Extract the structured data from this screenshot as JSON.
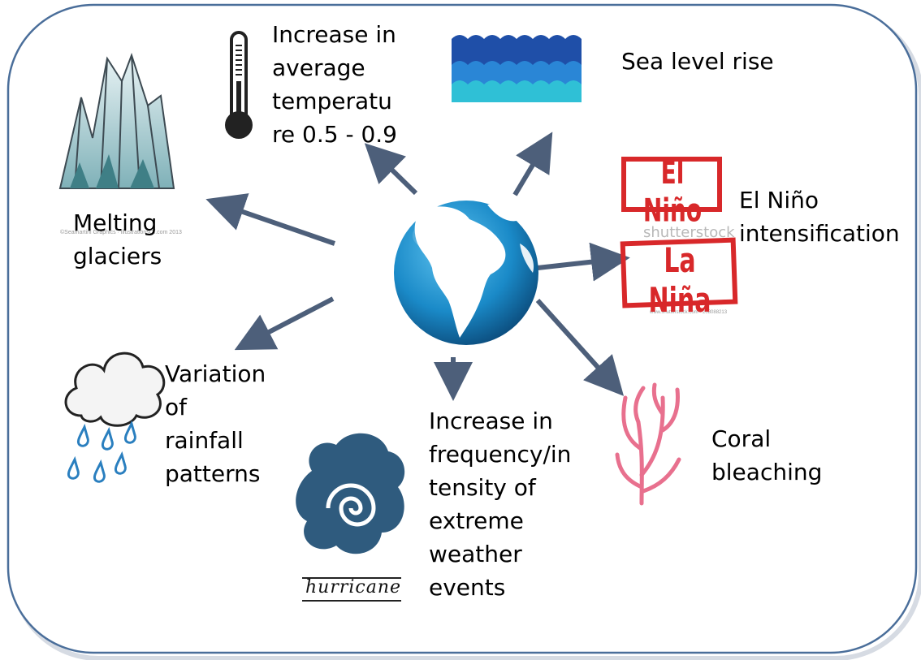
{
  "diagram": {
    "center": {
      "icon": "globe-icon"
    },
    "effects": [
      {
        "id": "glaciers",
        "icon": "mountain-icon",
        "label": "Melting\nglaciers"
      },
      {
        "id": "temperature",
        "icon": "thermometer-icon",
        "label": "Increase in\naverage\ntemperatu\nre 0.5 - 0.9"
      },
      {
        "id": "sea-level",
        "icon": "waves-icon",
        "label": "Sea level rise"
      },
      {
        "id": "el-nino",
        "icon": "stamp-icon",
        "label": "El Niño\nintensification",
        "stamp_top": "El Niño",
        "stamp_bottom": "La Niña",
        "stamp_watermark": "shutterstock"
      },
      {
        "id": "rainfall",
        "icon": "rain-cloud-icon",
        "label": "Variation\nof\nrainfall\npatterns"
      },
      {
        "id": "extreme-weather",
        "icon": "hurricane-icon",
        "label": "Increase in\nfrequency/in\ntensity of\nextreme\nweather\nevents",
        "icon_caption": "hurricane"
      },
      {
        "id": "coral",
        "icon": "coral-icon",
        "label": "Coral\nbleaching"
      }
    ]
  },
  "colors": {
    "frame": "#4a6e9a",
    "arrow": "#4d5f7a",
    "globe_ocean": "#1a8ac8",
    "globe_land": "#ffffff",
    "stamp_red": "#d8282a",
    "coral": "#e8708e",
    "hurricane": "#2f5b7e",
    "wave_dark": "#1f4fa8",
    "wave_mid": "#2a86d6",
    "wave_light": "#2fc0d6"
  }
}
